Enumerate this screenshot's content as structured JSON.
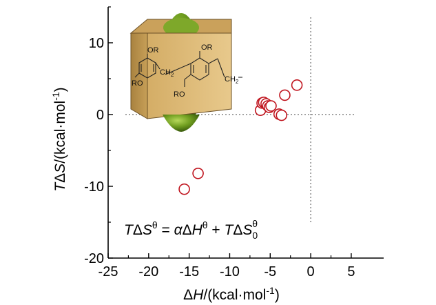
{
  "chart_data": {
    "type": "scatter",
    "title": "",
    "xlabel": "ΔH/(kcal·mol⁻¹)",
    "ylabel": "TΔS/(kcal·mol⁻¹)",
    "xlim": [
      -25,
      9
    ],
    "ylim": [
      -20,
      15
    ],
    "xticks": [
      -25,
      -20,
      -15,
      -10,
      -5,
      0,
      5
    ],
    "yticks": [
      10,
      0,
      -10,
      -20
    ],
    "grid": false,
    "reference_lines": {
      "x": 0,
      "y": 0,
      "style": "dotted"
    },
    "marker": {
      "shape": "open-circle",
      "color": "#c0141e"
    },
    "series": [
      {
        "values": [
          {
            "x": -15.6,
            "y": -10.4
          },
          {
            "x": -13.9,
            "y": -8.2
          },
          {
            "x": -6.2,
            "y": 0.6
          },
          {
            "x": -6.0,
            "y": 1.6
          },
          {
            "x": -5.8,
            "y": 1.7
          },
          {
            "x": -5.5,
            "y": 1.5
          },
          {
            "x": -5.3,
            "y": 1.2
          },
          {
            "x": -5.1,
            "y": 1.0
          },
          {
            "x": -4.9,
            "y": 1.2
          },
          {
            "x": -3.9,
            "y": 0.05
          },
          {
            "x": -3.6,
            "y": -0.1
          },
          {
            "x": -3.2,
            "y": 2.7
          },
          {
            "x": -1.7,
            "y": 4.1
          }
        ]
      }
    ],
    "annotation": {
      "equation_parts": {
        "t1": "T",
        "delta1": "Δ",
        "s": "S",
        "theta1": "θ",
        "equals": " = ",
        "alpha": "α",
        "delta2": "Δ",
        "h": "H",
        "theta2": "θ",
        "plus": " + ",
        "t2": "T",
        "delta3": "Δ",
        "s0": "S",
        "sub0": "0",
        "theta3": "θ"
      }
    }
  },
  "inset": {
    "description_labels": {
      "or_top": "OR",
      "or_left": "OR",
      "ro_left": "RO",
      "ro_bottom": "RO",
      "ch2_left": "CH",
      "ch2_left_sub": "2",
      "ch2_right": "CH",
      "ch2_right_sub": "2"
    },
    "guest_color": "#6f9d1f",
    "box_color": "#d9b46e"
  }
}
